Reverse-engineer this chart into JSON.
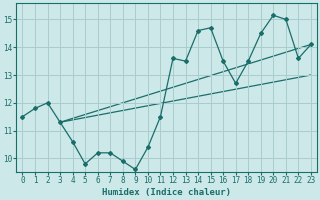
{
  "title": "",
  "xlabel": "Humidex (Indice chaleur)",
  "ylabel": "",
  "xlim": [
    -0.5,
    23.5
  ],
  "ylim": [
    9.5,
    15.6
  ],
  "bg_color": "#cce8e8",
  "grid_color": "#aacccc",
  "line_color": "#1a6e6a",
  "xticks": [
    0,
    1,
    2,
    3,
    4,
    5,
    6,
    7,
    8,
    9,
    10,
    11,
    12,
    13,
    14,
    15,
    16,
    17,
    18,
    19,
    20,
    21,
    22,
    23
  ],
  "yticks": [
    10,
    11,
    12,
    13,
    14,
    15
  ],
  "zigzag_x": [
    0,
    1,
    2,
    3,
    4,
    5,
    6,
    7,
    8,
    9,
    10,
    11,
    12,
    13,
    14,
    15,
    16,
    17,
    18,
    19,
    20,
    21,
    22,
    23
  ],
  "zigzag_y": [
    11.5,
    11.8,
    12.0,
    11.3,
    10.6,
    9.8,
    10.2,
    10.2,
    9.9,
    9.6,
    10.4,
    11.5,
    13.6,
    13.5,
    14.6,
    14.7,
    13.5,
    12.7,
    13.5,
    14.5,
    15.15,
    15.0,
    13.6,
    14.1
  ],
  "trend1_x": [
    3,
    23
  ],
  "trend1_y": [
    11.3,
    14.1
  ],
  "trend2_x": [
    3,
    23
  ],
  "trend2_y": [
    11.3,
    13.0
  ]
}
